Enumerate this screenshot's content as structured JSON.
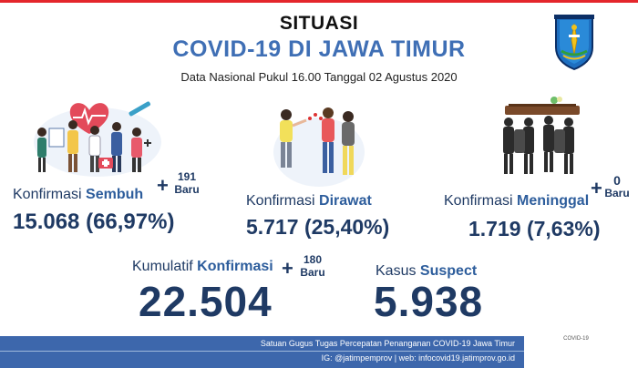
{
  "header": {
    "situasi": "SITUASI",
    "title": "COVID-19 DI JAWA TIMUR",
    "subtitle": "Data Nasional Pukul 16.00 Tanggal 02 Agustus 2020"
  },
  "sembuh": {
    "label_prefix": "Konfirmasi ",
    "label_bold": "Sembuh",
    "plus": "+",
    "new_count": "191",
    "new_label": "Baru",
    "value": "15.068 (66,97%)"
  },
  "dirawat": {
    "label_prefix": "Konfirmasi ",
    "label_bold": "Dirawat",
    "value": "5.717 (25,40%)"
  },
  "meninggal": {
    "label_prefix": "Konfirmasi ",
    "label_bold": "Meninggal",
    "plus": "+",
    "new_count": "0",
    "new_label": "Baru",
    "value": "1.719 (7,63%)"
  },
  "kumulatif": {
    "label_prefix": "Kumulatif ",
    "label_bold": "Konfirmasi",
    "plus": "+",
    "new_count": "180",
    "new_label": "Baru",
    "value": "22.504"
  },
  "suspect": {
    "label_prefix": "Kasus ",
    "label_bold": "Suspect",
    "value": "5.938"
  },
  "footer": {
    "line1": "Satuan Gugus Tugas Percepatan Penanganan COVID-19 Jawa Timur",
    "line2": "IG: @jatimpemprov | web: infocovid19.jatimprov.go.id",
    "badge": "COVID-19"
  },
  "icons": {
    "logo": "jawa-timur-emblem",
    "recovered": "medical-team-illustration",
    "treated": "patient-care-illustration",
    "deceased": "coffin-bearers-illustration"
  },
  "colors": {
    "title_blue": "#3f6fb5",
    "navy": "#1f3a64",
    "footer_blue": "#3d67ac",
    "accent_red": "#e4262b"
  }
}
